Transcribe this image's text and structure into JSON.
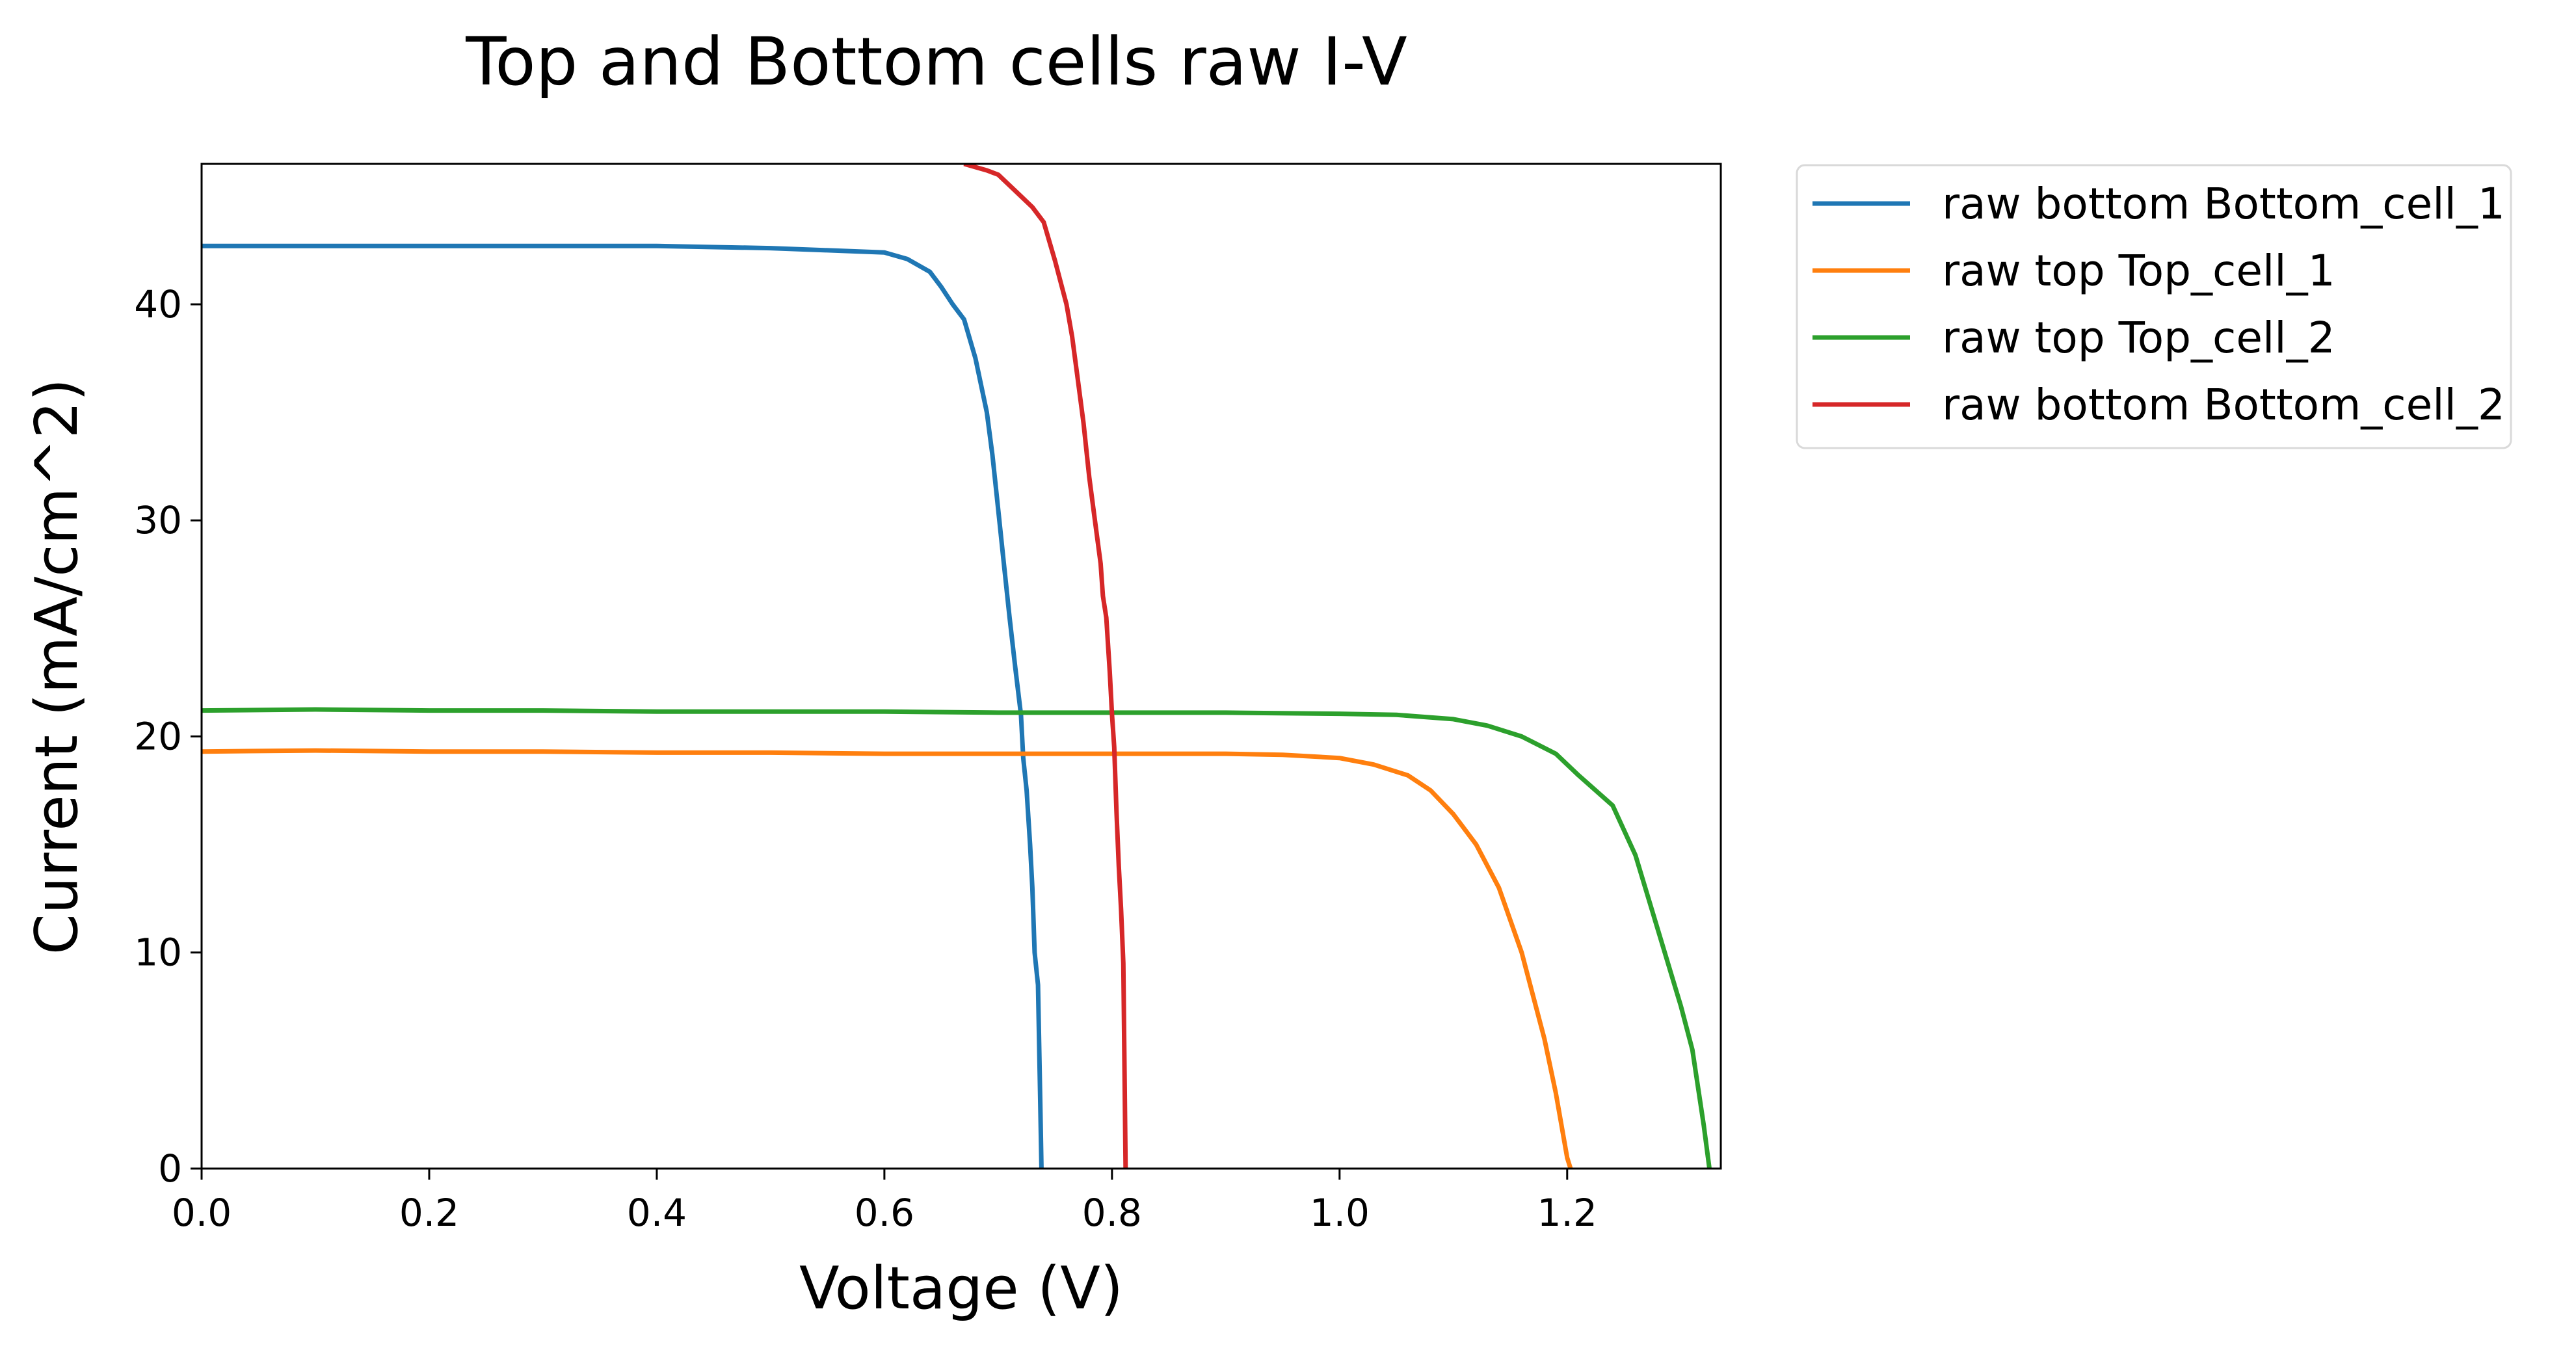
{
  "chart_data": {
    "type": "line",
    "title": "Top and Bottom cells raw I-V",
    "xlabel": "Voltage (V)",
    "ylabel": "Current (mA/cm^2)",
    "ylabel_color": "#ff0000",
    "xlim": [
      0,
      1.335
    ],
    "ylim": [
      0,
      46.5
    ],
    "xticks": [
      0.0,
      0.2,
      0.4,
      0.6,
      0.8,
      1.0,
      1.2
    ],
    "xtick_labels": [
      "0.0",
      "0.2",
      "0.4",
      "0.6",
      "0.8",
      "1.0",
      "1.2"
    ],
    "yticks": [
      0,
      10,
      20,
      30,
      40
    ],
    "ytick_labels": [
      "0",
      "10",
      "20",
      "30",
      "40"
    ],
    "grid": false,
    "legend_position": "outside-top-right",
    "series": [
      {
        "name": "raw bottom Bottom_cell_1",
        "color": "#1f77b4",
        "x": [
          0.0,
          0.1,
          0.2,
          0.3,
          0.4,
          0.5,
          0.55,
          0.6,
          0.62,
          0.64,
          0.65,
          0.66,
          0.67,
          0.68,
          0.69,
          0.695,
          0.7,
          0.705,
          0.71,
          0.715,
          0.72,
          0.722,
          0.725,
          0.728,
          0.73,
          0.732,
          0.735,
          0.737,
          0.738
        ],
        "y": [
          42.7,
          42.7,
          42.7,
          42.7,
          42.7,
          42.6,
          42.5,
          42.4,
          42.1,
          41.5,
          40.8,
          40.0,
          39.3,
          37.5,
          35.0,
          33.0,
          30.5,
          28.0,
          25.5,
          23.2,
          21.0,
          19.0,
          17.5,
          15.0,
          13.0,
          10.0,
          8.5,
          3.0,
          0.0
        ]
      },
      {
        "name": "raw top Top_cell_1",
        "color": "#ff7f0e",
        "x": [
          0.0,
          0.1,
          0.2,
          0.3,
          0.4,
          0.5,
          0.6,
          0.7,
          0.8,
          0.9,
          0.95,
          1.0,
          1.03,
          1.06,
          1.08,
          1.1,
          1.12,
          1.14,
          1.16,
          1.17,
          1.18,
          1.19,
          1.2,
          1.203
        ],
        "y": [
          19.3,
          19.35,
          19.3,
          19.3,
          19.25,
          19.25,
          19.2,
          19.2,
          19.2,
          19.2,
          19.15,
          19.0,
          18.7,
          18.2,
          17.5,
          16.4,
          15.0,
          13.0,
          10.0,
          8.0,
          6.0,
          3.5,
          0.5,
          0.0
        ]
      },
      {
        "name": "raw top Top_cell_2",
        "color": "#2ca02c",
        "x": [
          0.0,
          0.1,
          0.2,
          0.3,
          0.4,
          0.5,
          0.6,
          0.7,
          0.8,
          0.9,
          1.0,
          1.05,
          1.1,
          1.13,
          1.16,
          1.19,
          1.21,
          1.24,
          1.26,
          1.28,
          1.3,
          1.31,
          1.32,
          1.325
        ],
        "y": [
          21.2,
          21.25,
          21.2,
          21.2,
          21.15,
          21.15,
          21.15,
          21.1,
          21.1,
          21.1,
          21.05,
          21.0,
          20.8,
          20.5,
          20.0,
          19.2,
          18.2,
          16.8,
          14.5,
          11.0,
          7.5,
          5.5,
          2.0,
          0.0
        ]
      },
      {
        "name": "raw bottom Bottom_cell_2",
        "color": "#d62728",
        "x": [
          0.67,
          0.69,
          0.7,
          0.71,
          0.72,
          0.73,
          0.74,
          0.75,
          0.76,
          0.765,
          0.77,
          0.775,
          0.78,
          0.785,
          0.79,
          0.792,
          0.795,
          0.798,
          0.8,
          0.802,
          0.804,
          0.806,
          0.808,
          0.81,
          0.812
        ],
        "y": [
          46.5,
          46.2,
          46.0,
          45.5,
          45.0,
          44.5,
          43.8,
          42.0,
          40.0,
          38.5,
          36.5,
          34.5,
          32.0,
          30.0,
          28.0,
          26.5,
          25.5,
          23.0,
          21.0,
          19.5,
          16.5,
          14.0,
          12.0,
          9.5,
          0.0
        ]
      }
    ]
  }
}
